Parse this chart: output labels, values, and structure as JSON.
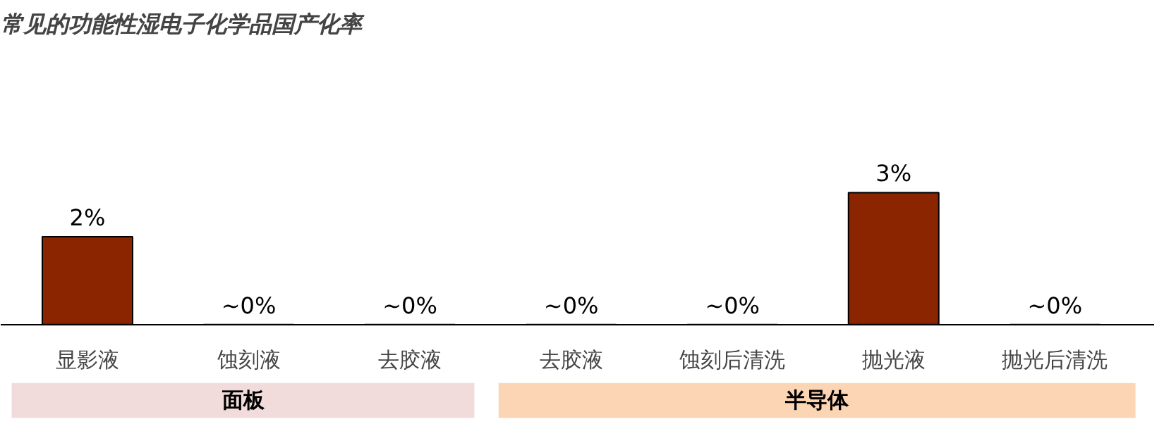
{
  "chart_data": {
    "type": "bar",
    "title": "常见的功能性湿电子化学品国产化率",
    "categories": [
      "显影液",
      "蚀刻液",
      "去胶液",
      "去胶液",
      "蚀刻后清洗",
      "抛光液",
      "抛光后清洗"
    ],
    "values": [
      2,
      0,
      0,
      0,
      0,
      3,
      0
    ],
    "value_labels": [
      "2%",
      "~0%",
      "~0%",
      "~0%",
      "~0%",
      "3%",
      "~0%"
    ],
    "color": "#8b2500",
    "annotations": [
      "面板",
      "半导体"
    ],
    "grid": false
  }
}
